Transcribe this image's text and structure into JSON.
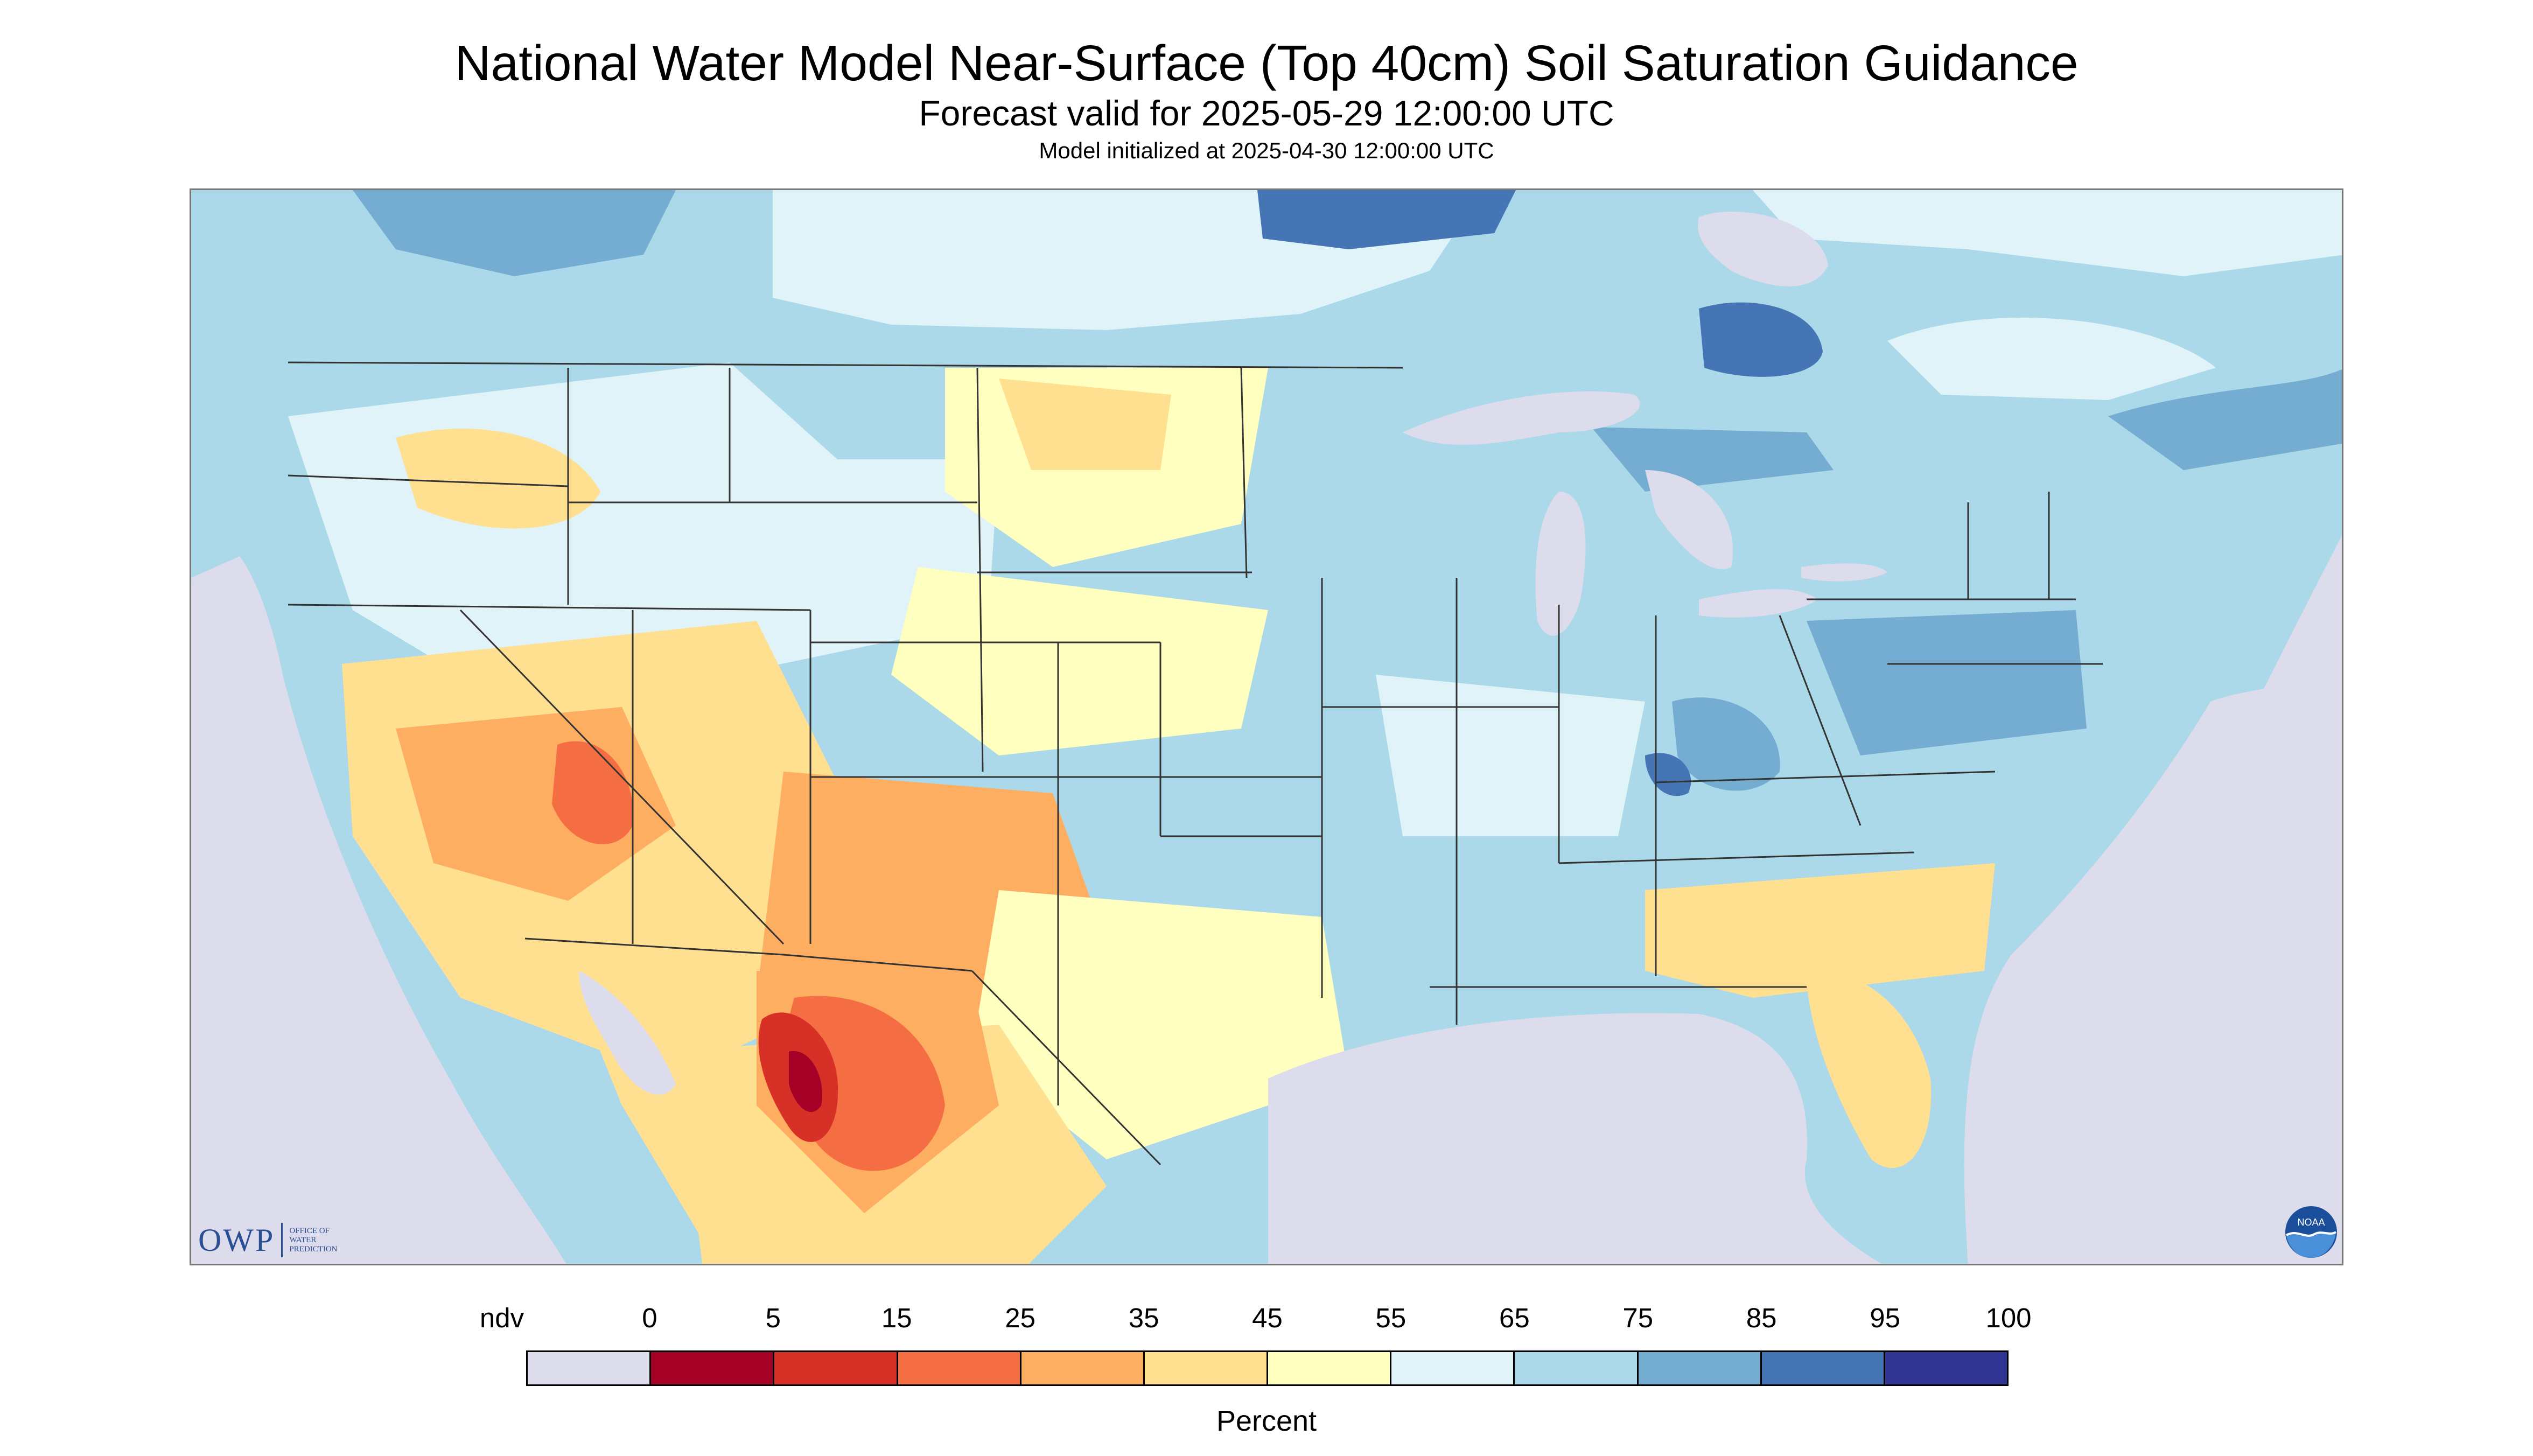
{
  "titles": {
    "main": "National Water Model Near-Surface (Top 40cm) Soil Saturation Guidance",
    "forecast": "Forecast valid for 2025-05-29 12:00:00 UTC",
    "initialized": "Model initialized at 2025-04-30 12:00:00 UTC"
  },
  "logos": {
    "owp": {
      "main": "OWP",
      "sub_lines": [
        "OFFICE OF",
        "WATER",
        "PREDICTION"
      ]
    },
    "noaa": {
      "text": "NOAA"
    }
  },
  "legend": {
    "unit": "Percent",
    "labels": [
      "ndv",
      "0",
      "5",
      "15",
      "25",
      "35",
      "45",
      "55",
      "65",
      "75",
      "85",
      "95",
      "100"
    ],
    "colors": [
      "#dcdcec",
      "#a50026",
      "#d73027",
      "#f46d43",
      "#fdae61",
      "#fee090",
      "#ffffbf",
      "#e0f3f8",
      "#abd9e9",
      "#74add1",
      "#4575b4",
      "#313695"
    ]
  },
  "map_colors": {
    "no_data": "#dcdcec",
    "outside_area": "#dcdcec",
    "land_base": "#abd9e9",
    "boundary": "#333333"
  }
}
